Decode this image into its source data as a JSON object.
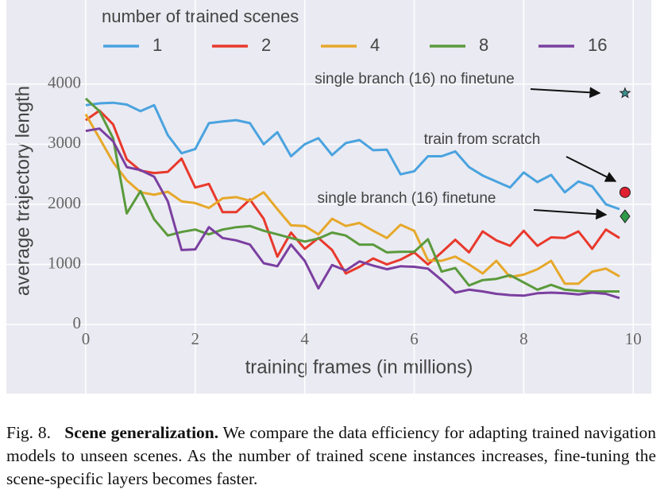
{
  "chart_data": {
    "type": "line",
    "legend_title": "number of trained scenes",
    "xlabel": "training frames (in millions)",
    "ylabel": "average trajectory length",
    "x": [
      0,
      0.25,
      0.5,
      0.75,
      1,
      1.25,
      1.5,
      1.75,
      2,
      2.25,
      2.5,
      2.75,
      3,
      3.25,
      3.5,
      3.75,
      4,
      4.25,
      4.5,
      4.75,
      5,
      5.25,
      5.5,
      5.75,
      6,
      6.25,
      6.5,
      6.75,
      7,
      7.25,
      7.5,
      7.75,
      8,
      8.25,
      8.5,
      8.75,
      9,
      9.25,
      9.5,
      9.75
    ],
    "series": [
      {
        "name": "1",
        "color": "#4aa3df",
        "values": [
          3650,
          3680,
          3690,
          3660,
          3550,
          3650,
          3150,
          2850,
          2920,
          3350,
          3380,
          3400,
          3350,
          3000,
          3200,
          2800,
          3000,
          3100,
          2820,
          3020,
          3070,
          2900,
          2910,
          2500,
          2550,
          2800,
          2800,
          2880,
          2620,
          2480,
          2380,
          2280,
          2530,
          2370,
          2490,
          2200,
          2380,
          2300,
          2000,
          1920
        ]
      },
      {
        "name": "2",
        "color": "#e8392c",
        "values": [
          3400,
          3560,
          3330,
          2750,
          2560,
          2520,
          2540,
          2760,
          2280,
          2340,
          1870,
          1870,
          2080,
          1760,
          1130,
          1530,
          1260,
          1440,
          1240,
          850,
          960,
          1100,
          1000,
          1080,
          1200,
          1000,
          1200,
          1410,
          1200,
          1550,
          1400,
          1310,
          1560,
          1310,
          1450,
          1440,
          1550,
          1260,
          1580,
          1440
        ]
      },
      {
        "name": "4",
        "color": "#e6a82a",
        "values": [
          3500,
          3100,
          2700,
          2400,
          2200,
          2160,
          2210,
          2050,
          2020,
          1940,
          2100,
          2120,
          2060,
          2200,
          1920,
          1650,
          1640,
          1500,
          1760,
          1640,
          1690,
          1560,
          1440,
          1660,
          1560,
          1070,
          1060,
          1130,
          1000,
          850,
          1060,
          790,
          830,
          920,
          1060,
          680,
          680,
          880,
          930,
          800
        ]
      },
      {
        "name": "8",
        "color": "#5a9a3c",
        "values": [
          3760,
          3550,
          3100,
          1850,
          2220,
          1750,
          1480,
          1540,
          1580,
          1500,
          1580,
          1620,
          1640,
          1560,
          1500,
          1440,
          1380,
          1430,
          1530,
          1480,
          1330,
          1330,
          1200,
          1210,
          1210,
          1420,
          880,
          940,
          650,
          740,
          760,
          820,
          700,
          580,
          660,
          580,
          560,
          550,
          550,
          550
        ]
      },
      {
        "name": "16",
        "color": "#7b3fa0",
        "values": [
          3220,
          3260,
          3050,
          2620,
          2570,
          2460,
          2050,
          1240,
          1250,
          1620,
          1440,
          1400,
          1330,
          1020,
          970,
          1330,
          1060,
          600,
          990,
          900,
          1050,
          980,
          920,
          970,
          960,
          930,
          740,
          530,
          580,
          550,
          510,
          490,
          480,
          520,
          530,
          520,
          500,
          530,
          510,
          440
        ]
      }
    ],
    "markers": [
      {
        "label": "single branch (16) no finetune",
        "x": 9.85,
        "y": 3850,
        "shape": "star",
        "color": "#3a8f8f"
      },
      {
        "label": "train from scratch",
        "x": 9.85,
        "y": 2200,
        "shape": "circle",
        "color": "#e02030"
      },
      {
        "label": "single branch (16) finetune",
        "x": 9.85,
        "y": 1800,
        "shape": "diamond",
        "color": "#2e9a4a"
      }
    ],
    "xlim": [
      -1.45,
      10.33
    ],
    "ylim": [
      -1150,
      5400
    ],
    "xticks": [
      0,
      2,
      4,
      6,
      8,
      10
    ],
    "yticks": [
      0,
      1000,
      2000,
      3000,
      4000
    ],
    "grid": true,
    "background": "#eaeaf2"
  },
  "caption": {
    "label": "Fig. 8.",
    "title": "Scene generalization.",
    "text": "We compare the data efficiency for adapting trained navigation models to unseen scenes. As the number of trained scene instances increases, fine-tuning the scene-specific layers becomes faster."
  }
}
